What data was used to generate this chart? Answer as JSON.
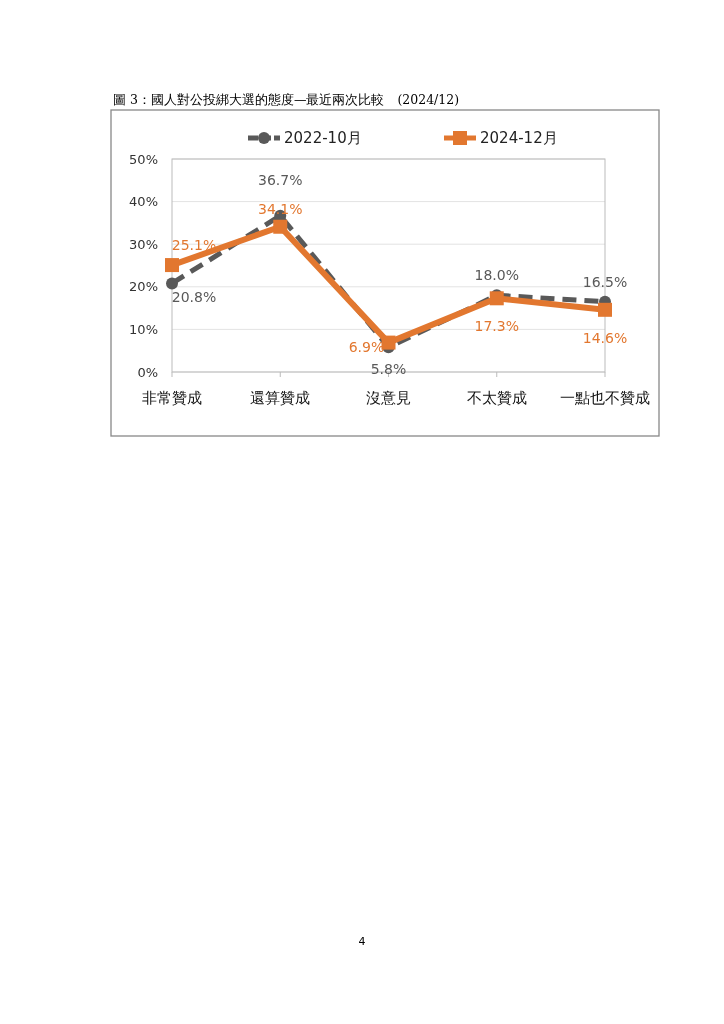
{
  "chart_data": {
    "type": "line",
    "title": "圖 3：國人對公投綁大選的態度—最近兩次比較　(2024/12)",
    "categories": [
      "非常贊成",
      "還算贊成",
      "沒意見",
      "不太贊成",
      "一點也不贊成"
    ],
    "series": [
      {
        "name": "2022-10月",
        "color": "#595959",
        "values": [
          20.8,
          36.7,
          5.8,
          18.0,
          16.5
        ],
        "marker": "circle",
        "line_style": "dashed",
        "value_labels": [
          "20.8%",
          "36.7%",
          "5.8%",
          "18.0%",
          "16.5%"
        ]
      },
      {
        "name": "2024-12月",
        "color": "#e2772f",
        "values": [
          25.1,
          34.1,
          6.9,
          17.3,
          14.6
        ],
        "marker": "square",
        "line_style": "solid",
        "value_labels": [
          "25.1%",
          "34.1%",
          "6.9%",
          "17.3%",
          "14.6%"
        ]
      }
    ],
    "ylim": [
      0,
      50
    ],
    "yticks": [
      {
        "value": 0,
        "label": "0%"
      },
      {
        "value": 10,
        "label": "10%"
      },
      {
        "value": 20,
        "label": "20%"
      },
      {
        "value": 30,
        "label": "30%"
      },
      {
        "value": 40,
        "label": "40%"
      },
      {
        "value": 50,
        "label": "50%"
      }
    ],
    "grid": "y",
    "legend": "top",
    "annotations": [
      "4"
    ]
  }
}
